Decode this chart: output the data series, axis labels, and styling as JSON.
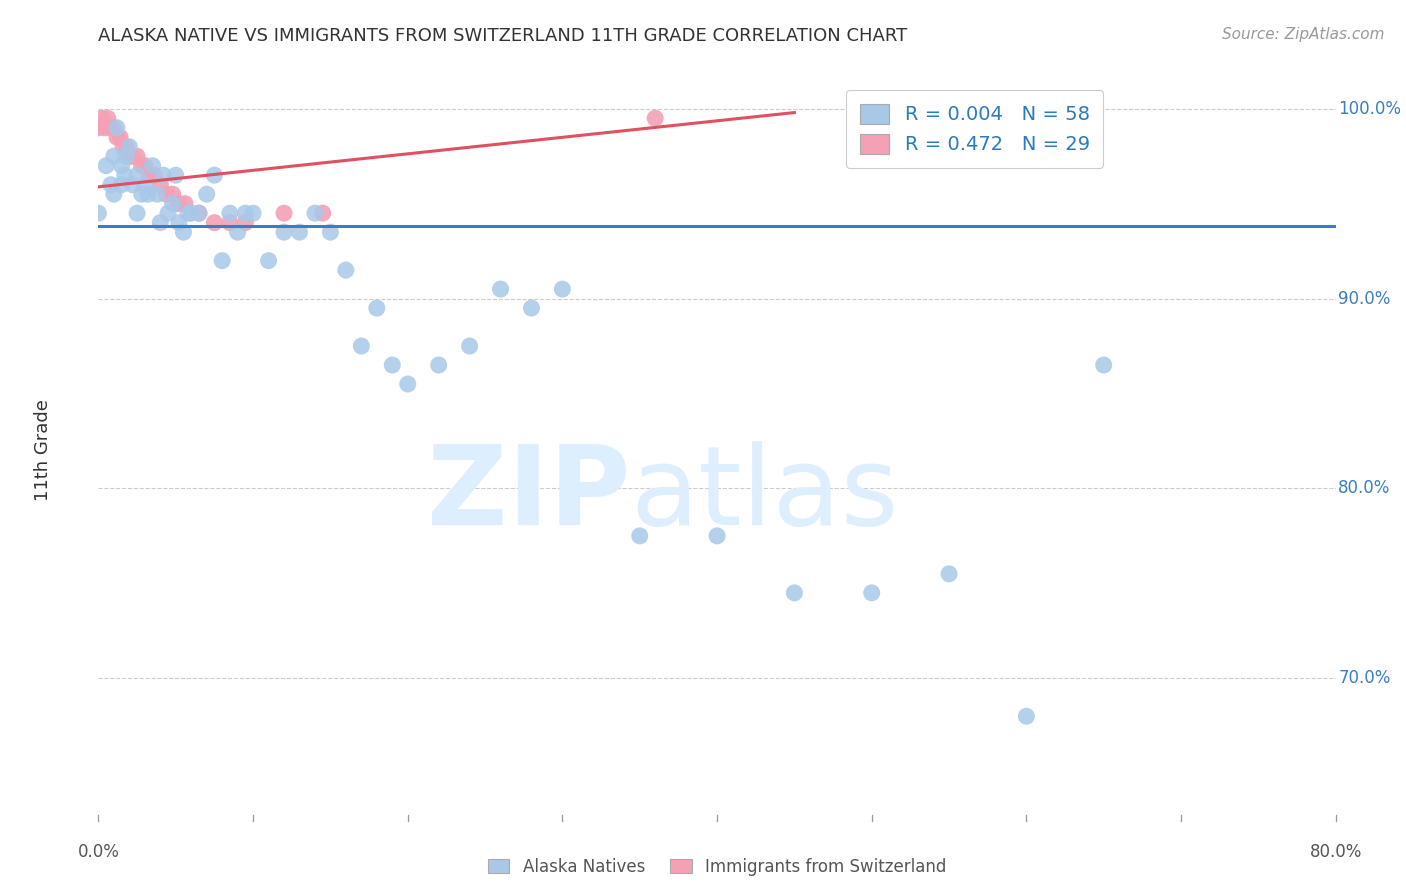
{
  "title": "ALASKA NATIVE VS IMMIGRANTS FROM SWITZERLAND 11TH GRADE CORRELATION CHART",
  "source": "Source: ZipAtlas.com",
  "ylabel": "11th Grade",
  "xmin": 0.0,
  "xmax": 0.8,
  "ymin": 0.625,
  "ymax": 1.015,
  "yticks": [
    0.7,
    0.8,
    0.9,
    1.0
  ],
  "ytick_labels": [
    "70.0%",
    "80.0%",
    "90.0%",
    "100.0%"
  ],
  "grid_color": "#cccccc",
  "background_color": "#ffffff",
  "blue_color": "#a8c8e8",
  "pink_color": "#f4a0b5",
  "blue_line_color": "#3a7ebf",
  "pink_line_color": "#e05060",
  "legend_blue_label": "R = 0.004   N = 58",
  "legend_pink_label": "R = 0.472   N = 29",
  "blue_scatter_x": [
    0.0,
    0.005,
    0.008,
    0.01,
    0.01,
    0.012,
    0.015,
    0.015,
    0.017,
    0.018,
    0.02,
    0.022,
    0.025,
    0.025,
    0.028,
    0.03,
    0.032,
    0.035,
    0.038,
    0.04,
    0.042,
    0.045,
    0.048,
    0.05,
    0.052,
    0.055,
    0.058,
    0.06,
    0.065,
    0.07,
    0.075,
    0.08,
    0.085,
    0.09,
    0.095,
    0.1,
    0.11,
    0.12,
    0.13,
    0.14,
    0.15,
    0.16,
    0.17,
    0.18,
    0.19,
    0.2,
    0.22,
    0.24,
    0.26,
    0.28,
    0.3,
    0.35,
    0.4,
    0.45,
    0.5,
    0.55,
    0.6,
    0.65
  ],
  "blue_scatter_y": [
    0.945,
    0.97,
    0.96,
    0.975,
    0.955,
    0.99,
    0.97,
    0.96,
    0.965,
    0.975,
    0.98,
    0.96,
    0.945,
    0.965,
    0.955,
    0.96,
    0.955,
    0.97,
    0.955,
    0.94,
    0.965,
    0.945,
    0.95,
    0.965,
    0.94,
    0.935,
    0.945,
    0.945,
    0.945,
    0.955,
    0.965,
    0.92,
    0.945,
    0.935,
    0.945,
    0.945,
    0.92,
    0.935,
    0.935,
    0.945,
    0.935,
    0.915,
    0.875,
    0.895,
    0.865,
    0.855,
    0.865,
    0.875,
    0.905,
    0.895,
    0.905,
    0.775,
    0.775,
    0.745,
    0.745,
    0.755,
    0.68,
    0.865
  ],
  "pink_scatter_x": [
    0.0,
    0.002,
    0.004,
    0.006,
    0.008,
    0.01,
    0.012,
    0.014,
    0.016,
    0.018,
    0.02,
    0.022,
    0.025,
    0.028,
    0.03,
    0.033,
    0.036,
    0.04,
    0.044,
    0.048,
    0.052,
    0.056,
    0.065,
    0.075,
    0.085,
    0.095,
    0.12,
    0.145,
    0.36
  ],
  "pink_scatter_y": [
    0.99,
    0.995,
    0.99,
    0.995,
    0.99,
    0.99,
    0.985,
    0.985,
    0.98,
    0.98,
    0.975,
    0.975,
    0.975,
    0.97,
    0.97,
    0.965,
    0.965,
    0.96,
    0.955,
    0.955,
    0.95,
    0.95,
    0.945,
    0.94,
    0.94,
    0.94,
    0.945,
    0.945,
    0.995
  ],
  "blue_hline_y": 0.938,
  "pink_regline_x0": -0.01,
  "pink_regline_y0": 0.958,
  "pink_regline_x1": 0.45,
  "pink_regline_y1": 0.998,
  "watermark_zip": "ZIP",
  "watermark_atlas": "atlas",
  "watermark_color": "#ddeeff",
  "watermark_fontsize": 80,
  "xtick_positions": [
    0.0,
    0.1,
    0.2,
    0.3,
    0.4,
    0.5,
    0.6,
    0.7,
    0.8
  ],
  "xtick_labels": [
    "0.0%",
    "",
    "",
    "",
    "",
    "",
    "",
    "",
    "80.0%"
  ]
}
